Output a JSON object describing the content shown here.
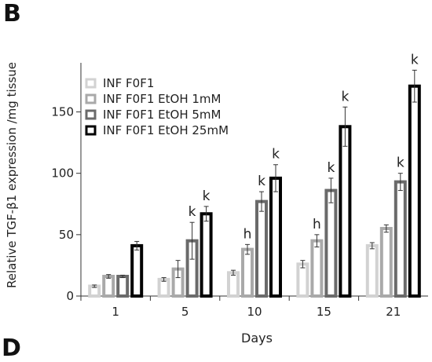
{
  "panel_label": "B",
  "next_panel_label": "D",
  "chart_data": {
    "type": "bar",
    "xlabel": "Days",
    "ylabel": "Relative TGF-β1 expression /mg tissue",
    "ylim": [
      0,
      190
    ],
    "yticks": [
      0,
      50,
      100,
      150
    ],
    "categories": [
      "1",
      "5",
      "10",
      "15",
      "21"
    ],
    "legend_position": "top-left",
    "series": [
      {
        "name": "INF F0F1",
        "color": "#d2d2d2",
        "values": [
          8,
          13.5,
          19,
          26,
          41
        ],
        "errors": [
          1,
          1.5,
          2,
          3,
          2.5
        ],
        "annotations": [
          "",
          "",
          "",
          "",
          ""
        ]
      },
      {
        "name": "INF F0F1 EtOH 1mM",
        "color": "#a9a9a9",
        "values": [
          16,
          22,
          38,
          45,
          55
        ],
        "errors": [
          1.5,
          7,
          4,
          5,
          3
        ],
        "annotations": [
          "",
          "",
          "h",
          "h",
          ""
        ]
      },
      {
        "name": "INF F0F1 EtOH 5mM",
        "color": "#6a6a6a",
        "values": [
          16,
          45,
          77,
          86,
          93
        ],
        "errors": [
          1,
          15,
          8,
          10,
          7
        ],
        "annotations": [
          "",
          "k",
          "k",
          "k",
          "k"
        ]
      },
      {
        "name": "INF F0F1 EtOH 25mM",
        "color": "#000000",
        "values": [
          41,
          67,
          96,
          138,
          171
        ],
        "errors": [
          3.5,
          6,
          11,
          16,
          13
        ],
        "annotations": [
          "",
          "k",
          "k",
          "k",
          "k"
        ]
      }
    ]
  }
}
